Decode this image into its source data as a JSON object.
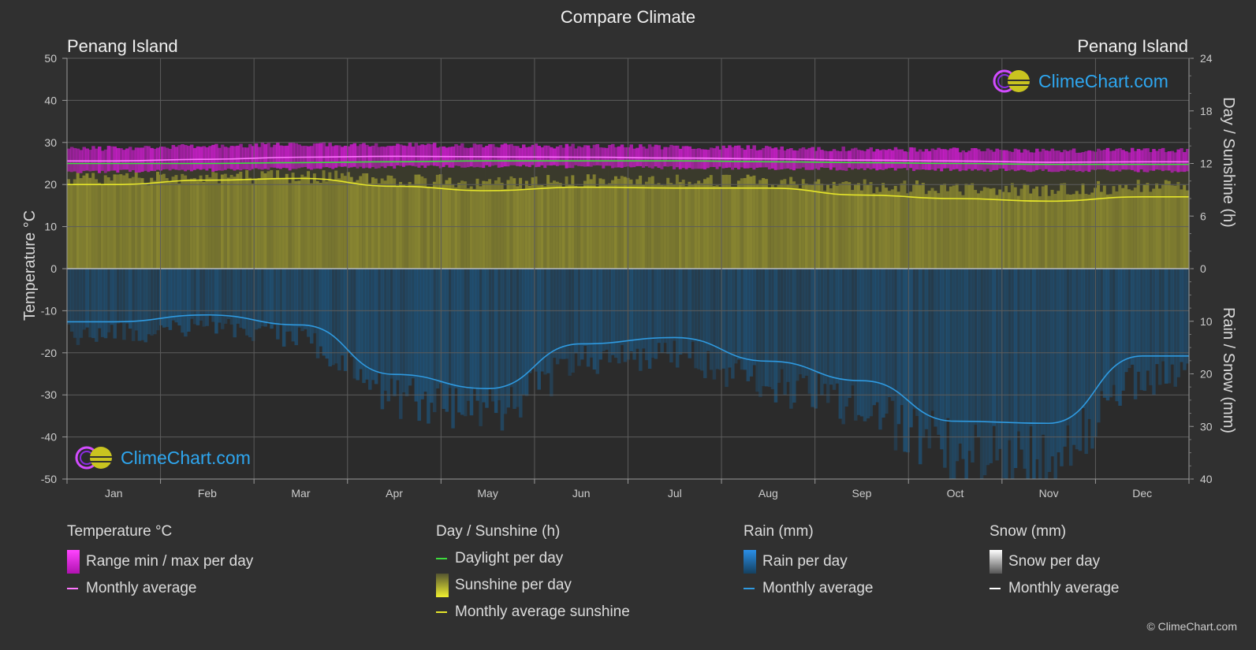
{
  "title": "Compare Climate",
  "location_left": "Penang Island",
  "location_right": "Penang Island",
  "watermark": "ClimeChart.com",
  "copyright": "© ClimeChart.com",
  "axes": {
    "left_title": "Temperature °C",
    "right_top_title": "Day / Sunshine (h)",
    "right_bottom_title": "Rain / Snow (mm)",
    "left_ticks": [
      50,
      40,
      30,
      20,
      10,
      0,
      -10,
      -20,
      -30,
      -40,
      -50
    ],
    "right_top_ticks": [
      24,
      18,
      12,
      6,
      0
    ],
    "right_bottom_ticks": [
      10,
      20,
      30,
      40
    ]
  },
  "chart_data": {
    "type": "area",
    "months": [
      "Jan",
      "Feb",
      "Mar",
      "Apr",
      "May",
      "Jun",
      "Jul",
      "Aug",
      "Sep",
      "Oct",
      "Nov",
      "Dec"
    ],
    "temperature_ylim": [
      -50,
      50
    ],
    "sunshine_ylim_h": [
      0,
      24
    ],
    "rain_ylim_mm": [
      0,
      40
    ],
    "series": [
      {
        "name": "Range min / max per day (max)",
        "unit": "°C",
        "values": [
          28.0,
          28.6,
          29.0,
          28.9,
          28.6,
          28.5,
          28.3,
          28.1,
          27.8,
          27.6,
          27.4,
          27.6
        ]
      },
      {
        "name": "Range min / max per day (min)",
        "unit": "°C",
        "values": [
          23.5,
          23.8,
          24.2,
          24.6,
          24.7,
          24.6,
          24.4,
          24.2,
          24.0,
          23.9,
          23.7,
          23.6
        ]
      },
      {
        "name": "Monthly average",
        "unit": "°C",
        "values": [
          25.6,
          26.0,
          26.5,
          26.7,
          26.6,
          26.5,
          26.3,
          26.1,
          25.8,
          25.6,
          25.3,
          25.4
        ]
      },
      {
        "name": "Daylight per day",
        "unit": "h",
        "values": [
          12.0,
          12.0,
          12.1,
          12.2,
          12.3,
          12.3,
          12.3,
          12.2,
          12.1,
          12.0,
          11.9,
          11.9
        ]
      },
      {
        "name": "Sunshine per day",
        "unit": "h",
        "values": [
          11.0,
          11.2,
          11.3,
          11.0,
          10.6,
          10.8,
          10.8,
          10.7,
          10.2,
          10.0,
          9.8,
          10.2
        ]
      },
      {
        "name": "Monthly average sunshine",
        "unit": "h",
        "values": [
          9.6,
          10.1,
          10.3,
          9.4,
          8.9,
          9.3,
          9.2,
          9.2,
          8.4,
          8.0,
          7.7,
          8.2
        ]
      },
      {
        "name": "Rain monthly average",
        "unit": "mm",
        "values": [
          10.1,
          8.8,
          10.7,
          20.1,
          22.8,
          14.3,
          13.1,
          17.6,
          21.3,
          29.0,
          29.4,
          16.6
        ]
      },
      {
        "name": "Snow monthly average",
        "unit": "mm",
        "values": [
          0,
          0,
          0,
          0,
          0,
          0,
          0,
          0,
          0,
          0,
          0,
          0
        ]
      }
    ]
  },
  "legend": {
    "temperature": {
      "title": "Temperature °C",
      "items": [
        "Range min / max per day",
        "Monthly average"
      ]
    },
    "sunshine": {
      "title": "Day / Sunshine (h)",
      "items": [
        "Daylight per day",
        "Sunshine per day",
        "Monthly average sunshine"
      ]
    },
    "rain": {
      "title": "Rain (mm)",
      "items": [
        "Rain per day",
        "Monthly average"
      ]
    },
    "snow": {
      "title": "Snow (mm)",
      "items": [
        "Snow per day",
        "Monthly average"
      ]
    }
  },
  "colors": {
    "background": "#303030",
    "temp_range": "#d21cd2",
    "temp_avg": "#ff77ff",
    "daylight": "#3ddc3d",
    "sunshine_fill": "#8d8a31",
    "sunshine_avg": "#e6e62a",
    "rain_fill": "#1d5a87",
    "rain_avg": "#2f9ae0",
    "snow_avg": "#ffffff",
    "grid": "#5c5c5c",
    "watermark": "#2ea6ef"
  }
}
